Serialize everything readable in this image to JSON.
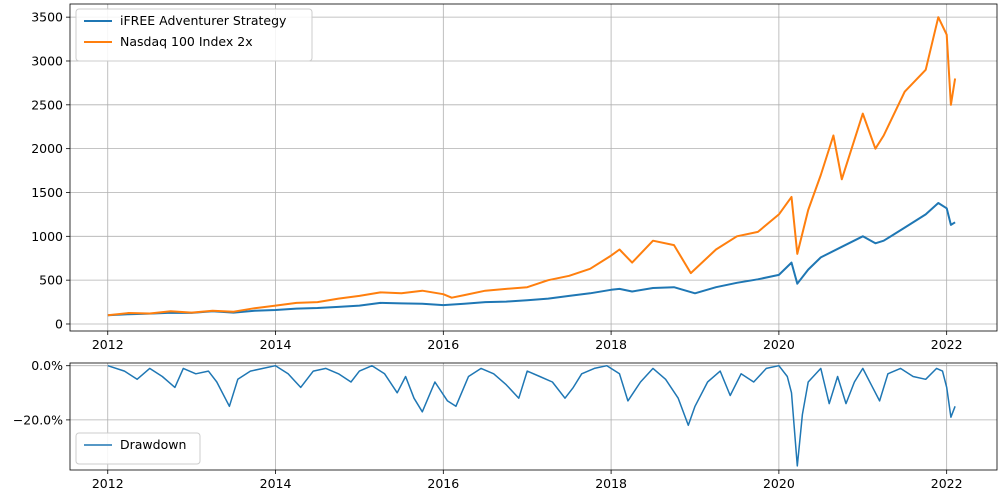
{
  "chart_data": [
    {
      "type": "line",
      "x_ticks": [
        "2012",
        "2014",
        "2016",
        "2018",
        "2020",
        "2022"
      ],
      "y_ticks": [
        "0",
        "500",
        "1000",
        "1500",
        "2000",
        "2500",
        "3000",
        "3500"
      ],
      "ylim": [
        -80,
        3650
      ],
      "xlim": [
        2011.55,
        2022.6
      ],
      "grid": true,
      "legend_position": "top-left",
      "series": [
        {
          "name": "iFREE Adventurer Strategy",
          "color": "#1f77b4",
          "x": [
            2012.0,
            2012.25,
            2012.5,
            2012.75,
            2013.0,
            2013.25,
            2013.5,
            2013.75,
            2014.0,
            2014.25,
            2014.5,
            2014.75,
            2015.0,
            2015.25,
            2015.5,
            2015.75,
            2016.0,
            2016.25,
            2016.5,
            2016.75,
            2017.0,
            2017.25,
            2017.5,
            2017.75,
            2018.0,
            2018.1,
            2018.25,
            2018.5,
            2018.75,
            2019.0,
            2019.25,
            2019.5,
            2019.75,
            2020.0,
            2020.15,
            2020.22,
            2020.35,
            2020.5,
            2020.75,
            2021.0,
            2021.15,
            2021.25,
            2021.5,
            2021.75,
            2021.9,
            2022.0,
            2022.05,
            2022.1
          ],
          "values": [
            100,
            112,
            118,
            128,
            126,
            145,
            130,
            150,
            160,
            175,
            182,
            195,
            210,
            240,
            235,
            230,
            215,
            230,
            250,
            255,
            270,
            290,
            320,
            350,
            390,
            400,
            370,
            410,
            420,
            350,
            420,
            470,
            510,
            560,
            700,
            460,
            620,
            760,
            880,
            1000,
            920,
            950,
            1100,
            1250,
            1380,
            1320,
            1130,
            1160
          ]
        },
        {
          "name": "Nasdaq 100 Index 2x",
          "color": "#ff7f0e",
          "x": [
            2012.0,
            2012.25,
            2012.5,
            2012.75,
            2013.0,
            2013.25,
            2013.5,
            2013.75,
            2014.0,
            2014.25,
            2014.5,
            2014.75,
            2015.0,
            2015.25,
            2015.5,
            2015.75,
            2016.0,
            2016.1,
            2016.25,
            2016.5,
            2016.75,
            2017.0,
            2017.25,
            2017.5,
            2017.75,
            2018.0,
            2018.1,
            2018.25,
            2018.5,
            2018.75,
            2018.95,
            2019.25,
            2019.5,
            2019.75,
            2020.0,
            2020.15,
            2020.22,
            2020.35,
            2020.5,
            2020.65,
            2020.75,
            2021.0,
            2021.15,
            2021.25,
            2021.5,
            2021.75,
            2021.9,
            2022.0,
            2022.05,
            2022.1
          ],
          "values": [
            100,
            125,
            120,
            145,
            130,
            150,
            140,
            180,
            210,
            240,
            250,
            290,
            320,
            360,
            350,
            380,
            340,
            300,
            330,
            380,
            400,
            420,
            500,
            550,
            630,
            780,
            850,
            700,
            950,
            900,
            580,
            850,
            1000,
            1050,
            1250,
            1450,
            800,
            1300,
            1700,
            2150,
            1650,
            2400,
            2000,
            2150,
            2650,
            2900,
            3500,
            3300,
            2500,
            2800
          ]
        }
      ]
    },
    {
      "type": "area",
      "x_ticks": [
        "2012",
        "2014",
        "2016",
        "2018",
        "2020",
        "2022"
      ],
      "y_ticks": [
        "0.0%",
        "−20.0%"
      ],
      "ylim": [
        -0.385,
        0.01
      ],
      "xlim": [
        2011.55,
        2022.6
      ],
      "grid": true,
      "legend_position": "bottom-left",
      "series": [
        {
          "name": "Drawdown",
          "color": "#1f77b4",
          "x": [
            2012.0,
            2012.2,
            2012.35,
            2012.5,
            2012.65,
            2012.8,
            2012.9,
            2013.05,
            2013.2,
            2013.3,
            2013.45,
            2013.55,
            2013.7,
            2013.85,
            2014.0,
            2014.15,
            2014.3,
            2014.45,
            2014.6,
            2014.75,
            2014.9,
            2015.0,
            2015.15,
            2015.3,
            2015.45,
            2015.55,
            2015.65,
            2015.75,
            2015.9,
            2016.05,
            2016.15,
            2016.3,
            2016.45,
            2016.6,
            2016.75,
            2016.9,
            2017.0,
            2017.15,
            2017.3,
            2017.45,
            2017.55,
            2017.65,
            2017.8,
            2017.95,
            2018.1,
            2018.2,
            2018.35,
            2018.5,
            2018.65,
            2018.8,
            2018.92,
            2019.0,
            2019.15,
            2019.3,
            2019.42,
            2019.55,
            2019.7,
            2019.85,
            2020.0,
            2020.1,
            2020.15,
            2020.22,
            2020.28,
            2020.35,
            2020.5,
            2020.6,
            2020.7,
            2020.8,
            2020.9,
            2021.0,
            2021.1,
            2021.2,
            2021.3,
            2021.45,
            2021.6,
            2021.75,
            2021.88,
            2021.95,
            2022.0,
            2022.05,
            2022.1
          ],
          "values": [
            0.0,
            -0.02,
            -0.05,
            -0.01,
            -0.04,
            -0.08,
            -0.01,
            -0.03,
            -0.02,
            -0.06,
            -0.15,
            -0.05,
            -0.02,
            -0.01,
            0.0,
            -0.03,
            -0.08,
            -0.02,
            -0.01,
            -0.03,
            -0.06,
            -0.02,
            0.0,
            -0.03,
            -0.1,
            -0.04,
            -0.12,
            -0.17,
            -0.06,
            -0.13,
            -0.15,
            -0.04,
            -0.01,
            -0.03,
            -0.07,
            -0.12,
            -0.02,
            -0.04,
            -0.06,
            -0.12,
            -0.08,
            -0.03,
            -0.01,
            0.0,
            -0.03,
            -0.13,
            -0.06,
            -0.01,
            -0.05,
            -0.12,
            -0.22,
            -0.15,
            -0.06,
            -0.02,
            -0.11,
            -0.03,
            -0.06,
            -0.01,
            0.0,
            -0.04,
            -0.1,
            -0.37,
            -0.18,
            -0.06,
            -0.01,
            -0.14,
            -0.04,
            -0.14,
            -0.06,
            -0.01,
            -0.07,
            -0.13,
            -0.03,
            -0.01,
            -0.04,
            -0.05,
            -0.01,
            -0.02,
            -0.08,
            -0.19,
            -0.15
          ]
        }
      ]
    }
  ]
}
